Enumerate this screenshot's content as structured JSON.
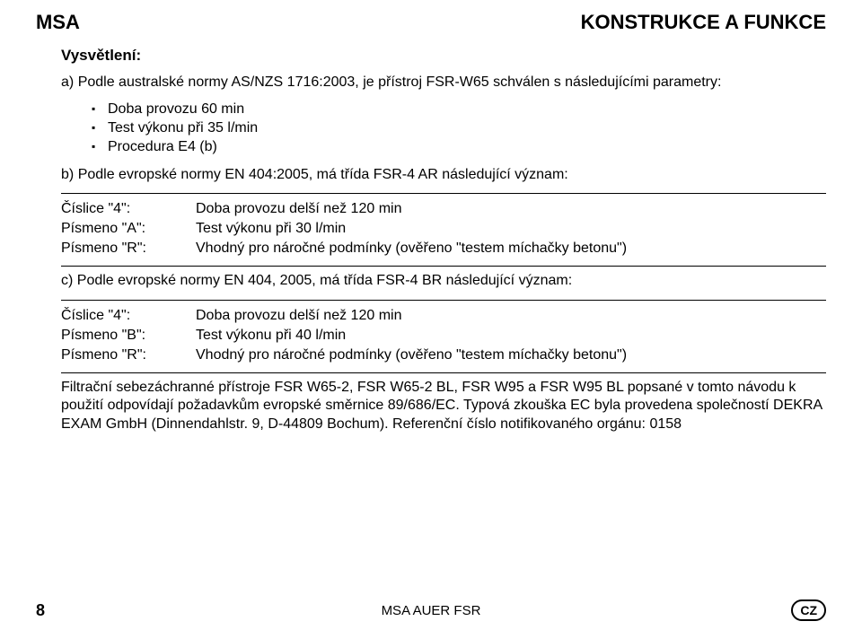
{
  "header": {
    "left": "MSA",
    "right": "KONSTRUKCE A FUNKCE"
  },
  "subheading": "Vysvětlení:",
  "section_a": {
    "label": "a)",
    "text": "Podle australské normy AS/NZS 1716:2003, je přístroj FSR-W65 schválen s následujícími parametry:",
    "bullets": [
      "Doba provozu 60 min",
      "Test výkonu při 35 l/min",
      "Procedura E4 (b)"
    ]
  },
  "section_b": {
    "label": "b)",
    "text": "Podle evropské normy EN 404:2005, má třída FSR-4 AR následující význam:",
    "rows": [
      {
        "l": "Číslice \"4\":",
        "r": "Doba provozu delší než 120 min"
      },
      {
        "l": "Písmeno \"A\":",
        "r": "Test výkonu při 30 l/min"
      },
      {
        "l": "Písmeno \"R\":",
        "r": "Vhodný pro náročné podmínky (ověřeno \"testem míchačky betonu\")"
      }
    ]
  },
  "section_c": {
    "label": "c)",
    "text": "Podle evropské normy EN 404, 2005, má třída FSR-4 BR následující význam:",
    "rows": [
      {
        "l": "Číslice \"4\":",
        "r": "Doba provozu delší než 120 min"
      },
      {
        "l": "Písmeno \"B\":",
        "r": "Test výkonu při 40 l/min"
      },
      {
        "l": "Písmeno \"R\":",
        "r": "Vhodný pro náročné podmínky (ověřeno \"testem míchačky betonu\")"
      }
    ]
  },
  "final_para": "Filtrační sebezáchranné přístroje FSR W65-2, FSR W65-2 BL, FSR W95 a FSR W95 BL popsané v tomto návodu k použití odpovídají požadavkům evropské směrnice 89/686/EC. Typová zkouška EC byla provedena společností DEKRA EXAM GmbH (Dinnendahlstr. 9, D-44809 Bochum). Referenční číslo notifikovaného orgánu: 0158",
  "footer": {
    "page": "8",
    "center": "MSA AUER FSR",
    "lang": "CZ"
  }
}
